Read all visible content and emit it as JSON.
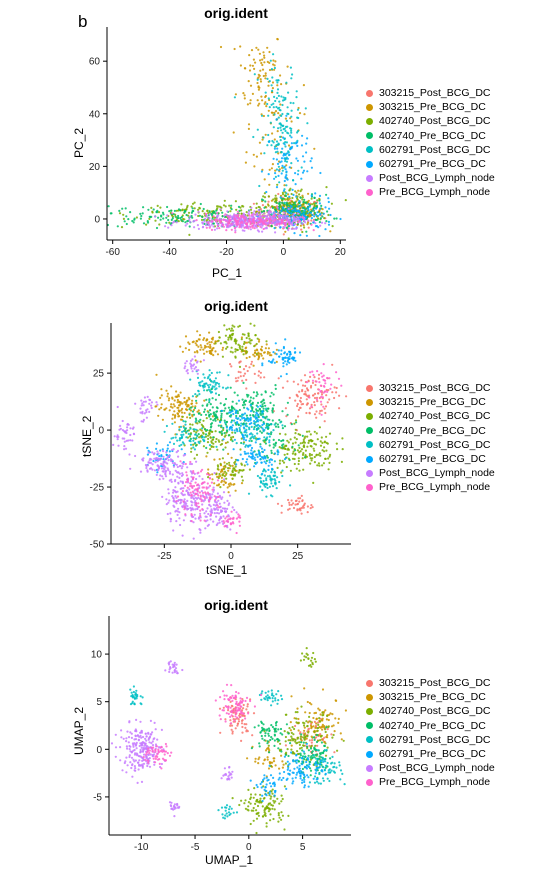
{
  "panel_label": "b",
  "colors": {
    "303215_Post_BCG_DC": "#F8766D",
    "303215_Pre_BCG_DC": "#CD9600",
    "402740_Post_BCG_DC": "#7CAE00",
    "402740_Pre_BCG_DC": "#00BE67",
    "602791_Post_BCG_DC": "#00BFC4",
    "602791_Pre_BCG_DC": "#00A9FF",
    "Post_BCG_Lymph_node": "#C77CFF",
    "Pre_BCG_Lymph_node": "#FF61CC"
  },
  "legend": [
    "303215_Post_BCG_DC",
    "303215_Pre_BCG_DC",
    "402740_Post_BCG_DC",
    "402740_Pre_BCG_DC",
    "602791_Post_BCG_DC",
    "602791_Pre_BCG_DC",
    "Post_BCG_Lymph_node",
    "Pre_BCG_Lymph_node"
  ],
  "chart_data": [
    {
      "type": "scatter",
      "title": "orig.ident",
      "xlabel": "PC_1",
      "ylabel": "PC_2",
      "xlim": [
        -62,
        22
      ],
      "ylim": [
        -8,
        73
      ],
      "xticks": [
        -60,
        -40,
        -20,
        0,
        20
      ],
      "yticks": [
        0,
        20,
        40,
        60
      ],
      "xtick_labels": [
        "-60",
        "-40",
        "-20",
        "0",
        "20"
      ],
      "ytick_labels": [
        "0",
        "20",
        "40",
        "60"
      ],
      "grid": false,
      "legend_position": "right",
      "series": [
        {
          "name": "303215_Post_BCG_DC",
          "clusters": [
            [
              2,
              2,
              6,
              3,
              120
            ]
          ]
        },
        {
          "name": "303215_Pre_BCG_DC",
          "clusters": [
            [
              -8,
              55,
              4,
              9,
              90
            ],
            [
              -3,
              30,
              5,
              12,
              60
            ],
            [
              3,
              3,
              6,
              3,
              120
            ]
          ]
        },
        {
          "name": "402740_Post_BCG_DC",
          "clusters": [
            [
              -25,
              2,
              14,
              2,
              140
            ],
            [
              3,
              4,
              6,
              4,
              160
            ]
          ]
        },
        {
          "name": "402740_Pre_BCG_DC",
          "clusters": [
            [
              -38,
              1,
              14,
              2,
              150
            ],
            [
              5,
              3,
              6,
              3,
              120
            ]
          ]
        },
        {
          "name": "602791_Post_BCG_DC",
          "clusters": [
            [
              0,
              30,
              3,
              10,
              110
            ],
            [
              -2,
              45,
              4,
              8,
              50
            ]
          ]
        },
        {
          "name": "602791_Pre_BCG_DC",
          "clusters": [
            [
              2,
              20,
              4,
              8,
              80
            ],
            [
              6,
              1,
              6,
              3,
              120
            ]
          ]
        },
        {
          "name": "Post_BCG_Lymph_node",
          "clusters": [
            [
              -15,
              -1,
              10,
              1.5,
              280
            ],
            [
              -5,
              0,
              7,
              2,
              160
            ]
          ]
        },
        {
          "name": "Pre_BCG_Lymph_node",
          "clusters": [
            [
              -12,
              -1,
              8,
              1.5,
              160
            ]
          ]
        }
      ]
    },
    {
      "type": "scatter",
      "title": "orig.ident",
      "xlabel": "tSNE_1",
      "ylabel": "tSNE_2",
      "xlim": [
        -45,
        45
      ],
      "ylim": [
        -50,
        47
      ],
      "xticks": [
        -25,
        0,
        25
      ],
      "yticks": [
        -50,
        -25,
        0,
        25
      ],
      "xtick_labels": [
        "-25",
        "0",
        "25"
      ],
      "ytick_labels": [
        "-50",
        "-25",
        "0",
        "25"
      ],
      "grid": false,
      "legend_position": "right",
      "series": [
        {
          "name": "303215_Post_BCG_DC",
          "clusters": [
            [
              30,
              15,
              5,
              5,
              110
            ],
            [
              25,
              -33,
              3,
              2,
              40
            ],
            [
              5,
              25,
              3,
              3,
              30
            ]
          ]
        },
        {
          "name": "303215_Pre_BCG_DC",
          "clusters": [
            [
              -20,
              10,
              4,
              4,
              110
            ],
            [
              -10,
              37,
              4,
              3,
              70
            ],
            [
              -3,
              -20,
              3,
              4,
              60
            ],
            [
              10,
              35,
              3,
              3,
              50
            ]
          ]
        },
        {
          "name": "402740_Post_BCG_DC",
          "clusters": [
            [
              3,
              40,
              4,
              4,
              90
            ],
            [
              27,
              -8,
              6,
              5,
              150
            ],
            [
              -8,
              -3,
              5,
              4,
              100
            ],
            [
              0,
              -18,
              3,
              3,
              50
            ]
          ]
        },
        {
          "name": "402740_Pre_BCG_DC",
          "clusters": [
            [
              -5,
              5,
              6,
              5,
              130
            ],
            [
              10,
              10,
              5,
              5,
              110
            ],
            [
              15,
              -5,
              4,
              4,
              60
            ]
          ]
        },
        {
          "name": "602791_Post_BCG_DC",
          "clusters": [
            [
              -8,
              20,
              3,
              3,
              60
            ],
            [
              14,
              -22,
              3,
              3,
              60
            ],
            [
              8,
              0,
              5,
              4,
              80
            ],
            [
              -15,
              -3,
              4,
              3,
              60
            ]
          ]
        },
        {
          "name": "602791_Pre_BCG_DC",
          "clusters": [
            [
              20,
              32,
              3,
              3,
              60
            ],
            [
              10,
              -12,
              4,
              3,
              70
            ],
            [
              5,
              3,
              4,
              4,
              80
            ],
            [
              -25,
              -12,
              3,
              3,
              40
            ]
          ]
        },
        {
          "name": "Post_BCG_Lymph_node",
          "clusters": [
            [
              -25,
              -15,
              5,
              3,
              120
            ],
            [
              -15,
              -30,
              5,
              6,
              200
            ],
            [
              -5,
              -35,
              3,
              4,
              80
            ],
            [
              -40,
              -2,
              2,
              4,
              40
            ],
            [
              -32,
              10,
              2,
              3,
              30
            ],
            [
              -15,
              28,
              2,
              2,
              25
            ]
          ]
        },
        {
          "name": "Pre_BCG_Lymph_node",
          "clusters": [
            [
              -13,
              -28,
              4,
              5,
              100
            ],
            [
              0,
              -40,
              2,
              2,
              30
            ],
            [
              35,
              20,
              3,
              4,
              40
            ]
          ]
        }
      ]
    },
    {
      "type": "scatter",
      "title": "orig.ident",
      "xlabel": "UMAP_1",
      "ylabel": "UMAP_2",
      "xlim": [
        -13,
        9.5
      ],
      "ylim": [
        -9,
        14
      ],
      "xticks": [
        -10,
        -5,
        0,
        5
      ],
      "yticks": [
        -5,
        0,
        5,
        10
      ],
      "xtick_labels": [
        "-10",
        "-5",
        "0",
        "5"
      ],
      "ytick_labels": [
        "-5",
        "0",
        "5",
        "10"
      ],
      "grid": false,
      "legend_position": "right",
      "series": [
        {
          "name": "303215_Post_BCG_DC",
          "clusters": [
            [
              -1,
              3.5,
              0.7,
              1.0,
              80
            ],
            [
              6,
              1.5,
              1.0,
              1.0,
              50
            ]
          ]
        },
        {
          "name": "303215_Pre_BCG_DC",
          "clusters": [
            [
              6.5,
              3,
              1.2,
              1.2,
              90
            ],
            [
              2,
              -1,
              0.8,
              0.8,
              40
            ]
          ]
        },
        {
          "name": "402740_Post_BCG_DC",
          "clusters": [
            [
              1.5,
              -6,
              1.0,
              1.0,
              110
            ],
            [
              5,
              1,
              1.4,
              1.4,
              120
            ],
            [
              5.5,
              9.5,
              0.4,
              0.4,
              20
            ]
          ]
        },
        {
          "name": "402740_Pre_BCG_DC",
          "clusters": [
            [
              6,
              -1,
              1.0,
              1.0,
              90
            ],
            [
              2,
              1.5,
              0.8,
              0.8,
              60
            ]
          ]
        },
        {
          "name": "602791_Post_BCG_DC",
          "clusters": [
            [
              7,
              -2,
              0.8,
              0.8,
              60
            ],
            [
              -10.5,
              5.5,
              0.4,
              0.5,
              30
            ],
            [
              2,
              5.5,
              0.5,
              0.4,
              30
            ],
            [
              -2,
              -6.5,
              0.4,
              0.4,
              20
            ]
          ]
        },
        {
          "name": "602791_Pre_BCG_DC",
          "clusters": [
            [
              5,
              -2,
              1.0,
              1.0,
              90
            ],
            [
              2,
              -4,
              0.6,
              0.6,
              40
            ]
          ]
        },
        {
          "name": "Post_BCG_Lymph_node",
          "clusters": [
            [
              -10,
              0,
              1.0,
              1.2,
              220
            ],
            [
              -7,
              8.8,
              0.3,
              0.4,
              25
            ],
            [
              -7,
              -6,
              0.2,
              0.5,
              20
            ],
            [
              -2,
              -2.5,
              0.3,
              0.4,
              20
            ]
          ]
        },
        {
          "name": "Pre_BCG_Lymph_node",
          "clusters": [
            [
              -1.5,
              4.5,
              0.8,
              1.0,
              80
            ],
            [
              -8.5,
              -0.5,
              0.6,
              0.6,
              50
            ]
          ]
        }
      ]
    }
  ]
}
